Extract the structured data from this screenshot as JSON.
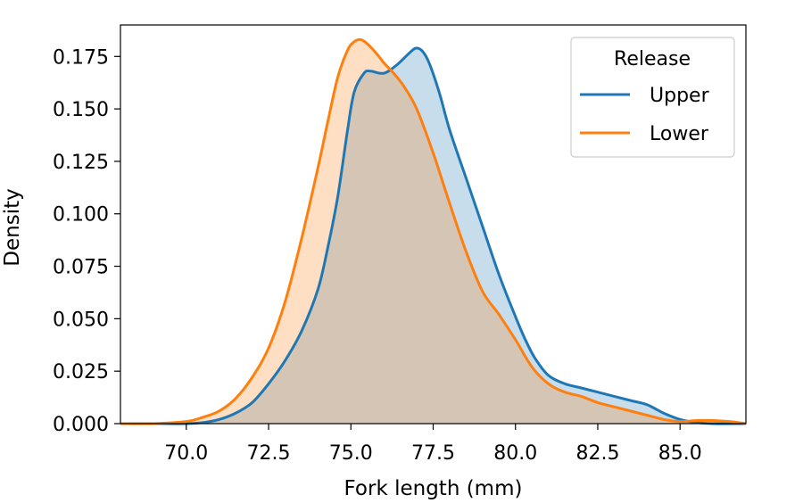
{
  "chart_data": {
    "type": "area",
    "title": "",
    "xlabel": "Fork length (mm)",
    "ylabel": "Density",
    "xlim": [
      68.0,
      87.0
    ],
    "ylim": [
      0.0,
      0.19
    ],
    "xticks": [
      70.0,
      72.5,
      75.0,
      77.5,
      80.0,
      82.5,
      85.0
    ],
    "xtick_labels": [
      "70.0",
      "72.5",
      "75.0",
      "77.5",
      "80.0",
      "82.5",
      "85.0"
    ],
    "yticks": [
      0.0,
      0.025,
      0.05,
      0.075,
      0.1,
      0.125,
      0.15,
      0.175
    ],
    "ytick_labels": [
      "0.000",
      "0.025",
      "0.050",
      "0.075",
      "0.100",
      "0.125",
      "0.150",
      "0.175"
    ],
    "grid": false,
    "legend": {
      "title": "Release",
      "placement": "top-right"
    },
    "series": [
      {
        "name": "Upper",
        "color": "#1f77b4",
        "fill_color": "#1f77b4",
        "x": [
          68.0,
          69.0,
          70.0,
          70.5,
          71.0,
          71.5,
          72.0,
          72.5,
          73.0,
          73.5,
          74.0,
          74.3,
          74.6,
          74.9,
          75.1,
          75.4,
          75.6,
          76.0,
          76.4,
          76.8,
          77.0,
          77.2,
          77.4,
          77.7,
          78.0,
          78.5,
          79.0,
          79.5,
          80.0,
          80.3,
          80.6,
          81.0,
          81.5,
          82.0,
          82.5,
          83.0,
          83.5,
          84.0,
          84.5,
          85.0,
          85.5,
          86.0,
          87.0
        ],
        "y": [
          0.0,
          0.0,
          0.0,
          0.0005,
          0.002,
          0.005,
          0.01,
          0.019,
          0.03,
          0.044,
          0.064,
          0.084,
          0.108,
          0.14,
          0.158,
          0.167,
          0.168,
          0.167,
          0.171,
          0.177,
          0.179,
          0.177,
          0.171,
          0.157,
          0.14,
          0.117,
          0.094,
          0.071,
          0.051,
          0.04,
          0.031,
          0.023,
          0.019,
          0.017,
          0.015,
          0.013,
          0.011,
          0.009,
          0.005,
          0.002,
          0.0005,
          0.0,
          0.0
        ]
      },
      {
        "name": "Lower",
        "color": "#ff7f0e",
        "fill_color": "#ff7f0e",
        "x": [
          68.0,
          69.0,
          70.0,
          70.5,
          71.0,
          71.5,
          72.0,
          72.5,
          73.0,
          73.5,
          74.0,
          74.3,
          74.6,
          74.9,
          75.1,
          75.3,
          75.5,
          75.8,
          76.0,
          76.3,
          76.6,
          77.0,
          77.5,
          78.0,
          78.5,
          79.0,
          79.5,
          80.0,
          80.5,
          81.0,
          81.5,
          82.0,
          82.5,
          83.0,
          83.5,
          84.0,
          84.5,
          85.0,
          85.5,
          86.0,
          86.5,
          87.0
        ],
        "y": [
          0.0,
          0.0,
          0.001,
          0.003,
          0.006,
          0.012,
          0.022,
          0.036,
          0.058,
          0.088,
          0.122,
          0.144,
          0.165,
          0.178,
          0.182,
          0.183,
          0.181,
          0.176,
          0.172,
          0.167,
          0.161,
          0.15,
          0.129,
          0.105,
          0.082,
          0.063,
          0.052,
          0.04,
          0.027,
          0.019,
          0.015,
          0.013,
          0.01,
          0.008,
          0.006,
          0.004,
          0.002,
          0.001,
          0.0015,
          0.0015,
          0.001,
          0.0
        ]
      }
    ]
  }
}
